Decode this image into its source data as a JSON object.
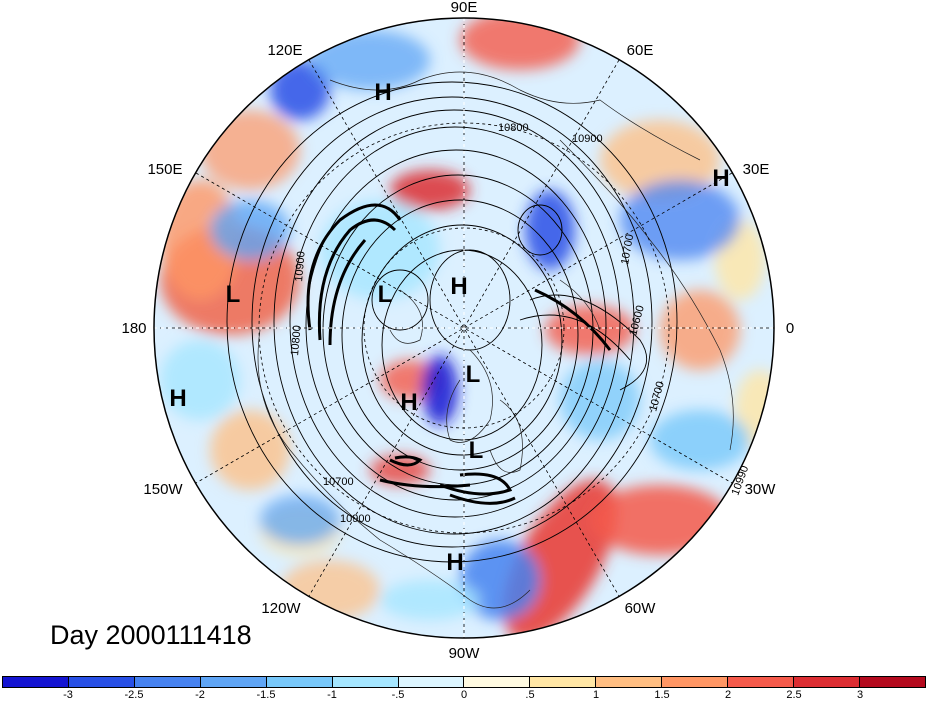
{
  "title": "Day 2000111418",
  "longitude_labels": [
    {
      "id": "lon-90e",
      "text": "90E"
    },
    {
      "id": "lon-60e",
      "text": "60E"
    },
    {
      "id": "lon-30e",
      "text": "30E"
    },
    {
      "id": "lon-0",
      "text": "0"
    },
    {
      "id": "lon-30w",
      "text": "30W"
    },
    {
      "id": "lon-60w",
      "text": "60W"
    },
    {
      "id": "lon-90w",
      "text": "90W"
    },
    {
      "id": "lon-120w",
      "text": "120W"
    },
    {
      "id": "lon-150w",
      "text": "150W"
    },
    {
      "id": "lon-180",
      "text": "180"
    },
    {
      "id": "lon-150e",
      "text": "150E"
    },
    {
      "id": "lon-120e",
      "text": "120E"
    }
  ],
  "pressure_centers": [
    "H",
    "H",
    "H",
    "L",
    "H",
    "H",
    "L",
    "H",
    "L",
    "L",
    "H",
    "L"
  ],
  "contour_labels": [
    "10900",
    "10800",
    "10700",
    "10600",
    "10700",
    "10990",
    "10800",
    "10900",
    "10700",
    "10900"
  ],
  "colorbar": {
    "colors": [
      "#1414d2",
      "#2850e6",
      "#4682f0",
      "#5fa5f5",
      "#78c8fa",
      "#a5e6ff",
      "#dcf5ff",
      "#fffae1",
      "#ffe6a5",
      "#ffbe82",
      "#ff9664",
      "#f55a4b",
      "#dc2d32",
      "#b40a1e"
    ],
    "tick_labels": [
      "-3",
      "-2.5",
      "-2",
      "-1.5",
      "-1",
      "-.5",
      "0",
      ".5",
      "1",
      "1.5",
      "2",
      "2.5",
      "3"
    ]
  }
}
